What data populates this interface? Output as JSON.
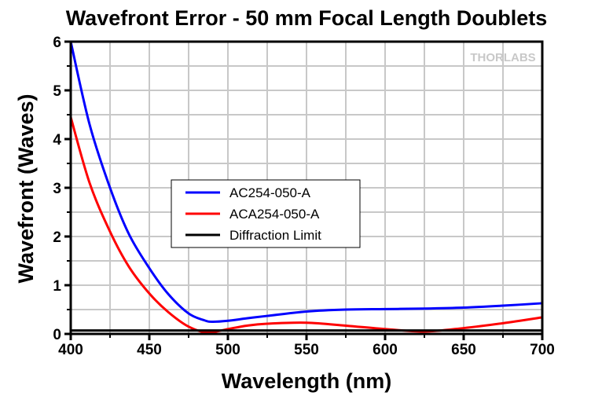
{
  "chart_data": {
    "type": "line",
    "title": "Wavefront Error - 50 mm Focal Length Doublets",
    "xlabel": "Wavelength (nm)",
    "ylabel": "Wavefront (Waves)",
    "xlim": [
      400,
      700
    ],
    "ylim": [
      0,
      6
    ],
    "xticks": [
      "400",
      "450",
      "500",
      "550",
      "600",
      "650",
      "700"
    ],
    "yticks": [
      "0",
      "1",
      "2",
      "3",
      "4",
      "5",
      "6"
    ],
    "grid": true,
    "legend_position": "center-left",
    "watermark": "THORLABS",
    "series": [
      {
        "name": "AC254-050-A",
        "color": "#0000ff",
        "x": [
          400,
          412,
          425,
          437,
          450,
          462,
          475,
          485,
          490,
          500,
          512,
          525,
          550,
          575,
          600,
          625,
          650,
          675,
          700
        ],
        "y": [
          6.0,
          4.3,
          3.0,
          2.05,
          1.35,
          0.82,
          0.42,
          0.28,
          0.25,
          0.27,
          0.32,
          0.37,
          0.46,
          0.5,
          0.51,
          0.52,
          0.54,
          0.58,
          0.63
        ]
      },
      {
        "name": "ACA254-050-A",
        "color": "#ff0000",
        "x": [
          400,
          412,
          425,
          437,
          450,
          462,
          475,
          487,
          500,
          512,
          525,
          550,
          575,
          600,
          625,
          650,
          675,
          700
        ],
        "y": [
          4.45,
          3.1,
          2.1,
          1.38,
          0.83,
          0.45,
          0.15,
          0.03,
          0.1,
          0.17,
          0.21,
          0.23,
          0.17,
          0.1,
          0.05,
          0.12,
          0.22,
          0.34
        ]
      },
      {
        "name": "Diffraction Limit",
        "color": "#000000",
        "x": [
          400,
          700
        ],
        "y": [
          0.07,
          0.07
        ]
      }
    ]
  }
}
